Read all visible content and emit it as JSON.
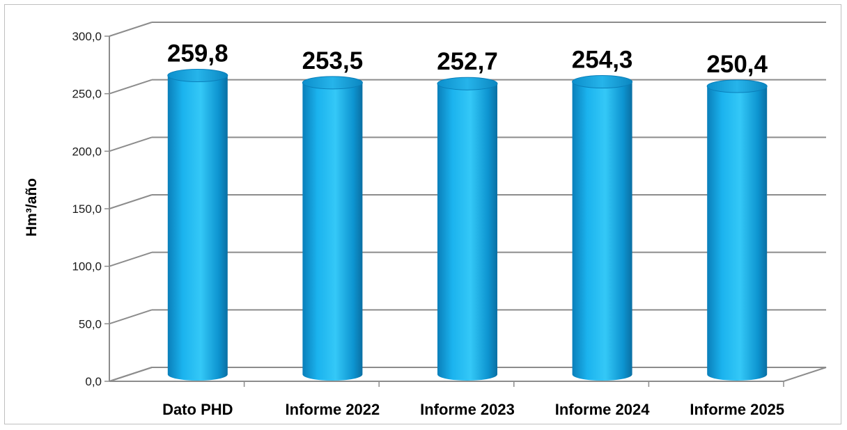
{
  "chart_data": {
    "type": "bar",
    "style": "3d-cylinder",
    "categories": [
      "Dato PHD",
      "Informe 2022",
      "Informe 2023",
      "Informe 2024",
      "Informe 2025"
    ],
    "values": [
      259.8,
      253.5,
      252.7,
      254.3,
      250.4
    ],
    "data_labels": [
      "259,8",
      "253,5",
      "252,7",
      "254,3",
      "250,4"
    ],
    "ylabel": "Hm³/año",
    "ylim": [
      0,
      300
    ],
    "yticks": [
      0,
      50,
      100,
      150,
      200,
      250,
      300
    ],
    "ytick_labels": [
      "0,0",
      "50,0",
      "100,0",
      "150,0",
      "200,0",
      "250,0",
      "300,0"
    ],
    "grid": true,
    "legend": "none",
    "colors": {
      "bar_light": "#33c6f6",
      "bar_mid": "#0aa5e3",
      "bar_dark": "#0a6fa3",
      "bar_top": "#1f9fd8",
      "grid": "#8c8c8c"
    }
  }
}
